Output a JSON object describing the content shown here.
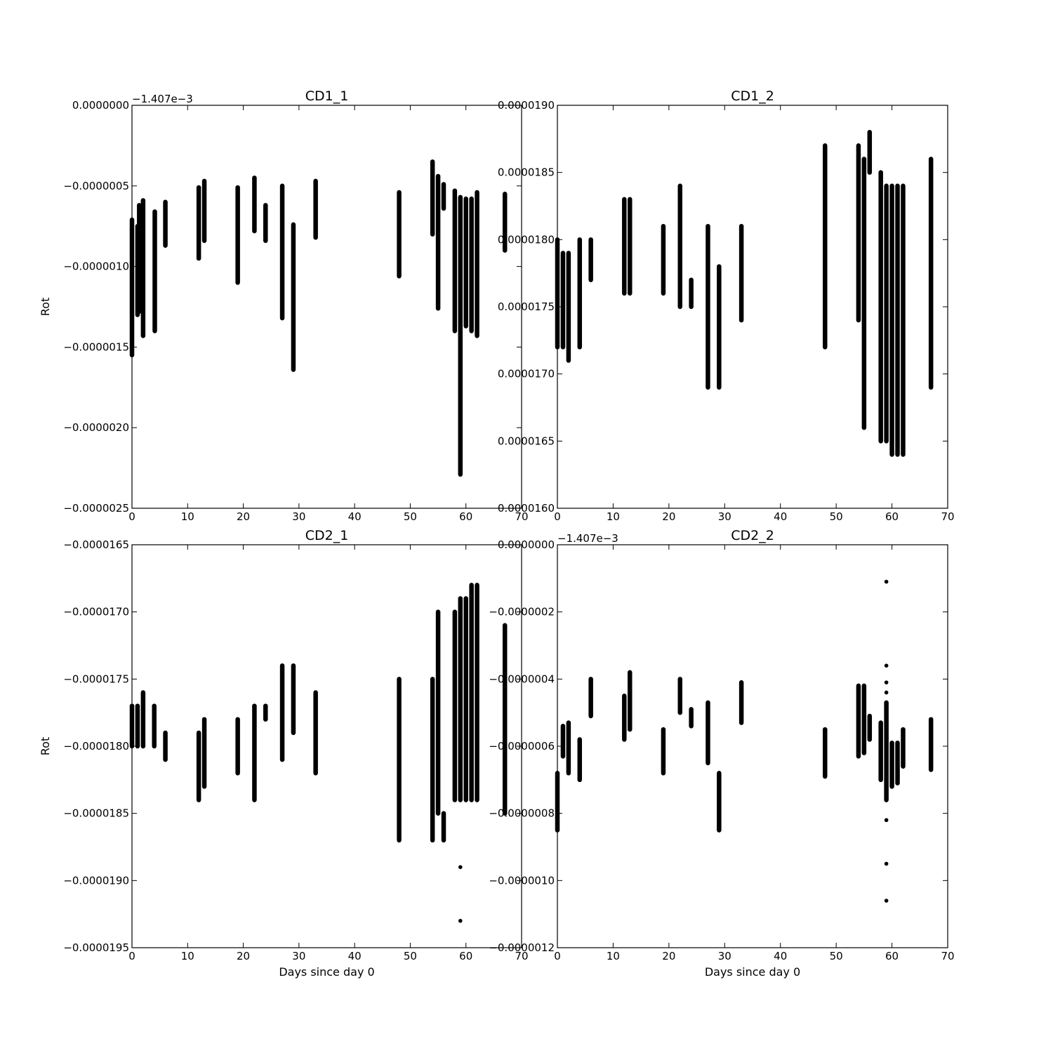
{
  "chart_data": [
    {
      "type": "scatter",
      "title": "CD1_1",
      "xlabel": "",
      "ylabel": "Rot",
      "offset_label": "−1.407e−3",
      "xlim": [
        0,
        70
      ],
      "ylim": [
        -2.5e-06,
        0.0
      ],
      "xticks": [
        "0",
        "10",
        "20",
        "30",
        "40",
        "50",
        "60",
        "70"
      ],
      "yticks": [
        "0.0000000",
        "−0.0000005",
        "−0.0000010",
        "−0.0000015",
        "−0.0000020",
        "−0.0000025"
      ],
      "marker_color": "#000000",
      "series": [
        {
          "points": [
            {
              "x": 0,
              "lo": -1.55e-06,
              "hi": -7.1e-07
            },
            {
              "x": 1,
              "lo": -1.3e-06,
              "hi": -7.5e-07
            },
            {
              "x": 1.3,
              "lo": -1.28e-06,
              "hi": -6.2e-07
            },
            {
              "x": 2,
              "lo": -1.43e-06,
              "hi": -5.9e-07
            },
            {
              "x": 4.1,
              "lo": -1.4e-06,
              "hi": -6.6e-07
            },
            {
              "x": 6,
              "lo": -8.7e-07,
              "hi": -6e-07
            },
            {
              "x": 12,
              "lo": -9.5e-07,
              "hi": -5.1e-07
            },
            {
              "x": 13,
              "lo": -8.4e-07,
              "hi": -4.7e-07
            },
            {
              "x": 19,
              "lo": -1.1e-06,
              "hi": -5.1e-07
            },
            {
              "x": 22,
              "lo": -7.8e-07,
              "hi": -4.5e-07
            },
            {
              "x": 24,
              "lo": -8.4e-07,
              "hi": -6.2e-07
            },
            {
              "x": 27,
              "lo": -1.32e-06,
              "hi": -5e-07
            },
            {
              "x": 29,
              "lo": -1.64e-06,
              "hi": -7.4e-07
            },
            {
              "x": 33,
              "lo": -8.2e-07,
              "hi": -4.7e-07
            },
            {
              "x": 48,
              "lo": -1.06e-06,
              "hi": -5.4e-07
            },
            {
              "x": 54,
              "lo": -8e-07,
              "hi": -3.5e-07
            },
            {
              "x": 55,
              "lo": -1.26e-06,
              "hi": -4.4e-07
            },
            {
              "x": 56,
              "lo": -6.4e-07,
              "hi": -4.9e-07
            },
            {
              "x": 58,
              "lo": -1.4e-06,
              "hi": -5.3e-07
            },
            {
              "x": 59,
              "lo": -2.29e-06,
              "hi": -5.7e-07
            },
            {
              "x": 60,
              "lo": -1.37e-06,
              "hi": -5.8e-07
            },
            {
              "x": 61,
              "lo": -1.4e-06,
              "hi": -5.8e-07
            },
            {
              "x": 62,
              "lo": -1.43e-06,
              "hi": -5.4e-07
            },
            {
              "x": 67,
              "lo": -9e-07,
              "hi": -5.5e-07
            }
          ],
          "outliers": [
            {
              "x": 59,
              "y": -1.7e-06
            },
            {
              "x": 59,
              "y": -1.79e-06
            },
            {
              "x": 59,
              "y": -2.1e-06
            },
            {
              "x": 59,
              "y": -2.14e-06
            }
          ]
        }
      ]
    },
    {
      "type": "scatter",
      "title": "CD1_2",
      "xlabel": "",
      "ylabel": "",
      "offset_label": "",
      "xlim": [
        0,
        70
      ],
      "ylim": [
        1.6e-05,
        1.9e-05
      ],
      "xticks": [
        "0",
        "10",
        "20",
        "30",
        "40",
        "50",
        "60",
        "70"
      ],
      "yticks": [
        "0.0000190",
        "0.0000185",
        "0.0000180",
        "0.0000175",
        "0.0000170",
        "0.0000165",
        "0.0000160"
      ],
      "marker_color": "#000000",
      "series": [
        {
          "points": [
            {
              "x": 0,
              "lo": 1.72e-05,
              "hi": 1.8e-05
            },
            {
              "x": 1,
              "lo": 1.72e-05,
              "hi": 1.79e-05
            },
            {
              "x": 2,
              "lo": 1.71e-05,
              "hi": 1.79e-05
            },
            {
              "x": 4,
              "lo": 1.72e-05,
              "hi": 1.8e-05
            },
            {
              "x": 6,
              "lo": 1.77e-05,
              "hi": 1.8e-05
            },
            {
              "x": 12,
              "lo": 1.76e-05,
              "hi": 1.83e-05
            },
            {
              "x": 13,
              "lo": 1.76e-05,
              "hi": 1.83e-05
            },
            {
              "x": 19,
              "lo": 1.76e-05,
              "hi": 1.81e-05
            },
            {
              "x": 22,
              "lo": 1.75e-05,
              "hi": 1.84e-05
            },
            {
              "x": 24,
              "lo": 1.75e-05,
              "hi": 1.77e-05
            },
            {
              "x": 27,
              "lo": 1.69e-05,
              "hi": 1.81e-05
            },
            {
              "x": 29,
              "lo": 1.69e-05,
              "hi": 1.78e-05
            },
            {
              "x": 33,
              "lo": 1.74e-05,
              "hi": 1.81e-05
            },
            {
              "x": 48,
              "lo": 1.72e-05,
              "hi": 1.87e-05
            },
            {
              "x": 54,
              "lo": 1.74e-05,
              "hi": 1.87e-05
            },
            {
              "x": 55,
              "lo": 1.66e-05,
              "hi": 1.86e-05
            },
            {
              "x": 56,
              "lo": 1.85e-05,
              "hi": 1.88e-05
            },
            {
              "x": 58,
              "lo": 1.65e-05,
              "hi": 1.85e-05
            },
            {
              "x": 59,
              "lo": 1.65e-05,
              "hi": 1.84e-05
            },
            {
              "x": 60,
              "lo": 1.64e-05,
              "hi": 1.84e-05
            },
            {
              "x": 61,
              "lo": 1.64e-05,
              "hi": 1.84e-05
            },
            {
              "x": 62,
              "lo": 1.64e-05,
              "hi": 1.84e-05
            },
            {
              "x": 67,
              "lo": 1.69e-05,
              "hi": 1.86e-05
            }
          ],
          "outliers": []
        }
      ]
    },
    {
      "type": "scatter",
      "title": "CD2_1",
      "xlabel": "Days since day 0",
      "ylabel": "Rot",
      "offset_label": "",
      "xlim": [
        0,
        70
      ],
      "ylim": [
        -1.95e-05,
        -1.65e-05
      ],
      "xticks": [
        "0",
        "10",
        "20",
        "30",
        "40",
        "50",
        "60",
        "70"
      ],
      "yticks": [
        "−0.0000165",
        "−0.0000170",
        "−0.0000175",
        "−0.0000180",
        "−0.0000185",
        "−0.0000190",
        "−0.0000195"
      ],
      "marker_color": "#000000",
      "series": [
        {
          "points": [
            {
              "x": 0,
              "lo": -1.8e-05,
              "hi": -1.77e-05
            },
            {
              "x": 1,
              "lo": -1.8e-05,
              "hi": -1.77e-05
            },
            {
              "x": 2,
              "lo": -1.8e-05,
              "hi": -1.76e-05
            },
            {
              "x": 4,
              "lo": -1.8e-05,
              "hi": -1.77e-05
            },
            {
              "x": 6,
              "lo": -1.81e-05,
              "hi": -1.79e-05
            },
            {
              "x": 12,
              "lo": -1.84e-05,
              "hi": -1.79e-05
            },
            {
              "x": 13,
              "lo": -1.83e-05,
              "hi": -1.78e-05
            },
            {
              "x": 19,
              "lo": -1.82e-05,
              "hi": -1.78e-05
            },
            {
              "x": 22,
              "lo": -1.84e-05,
              "hi": -1.77e-05
            },
            {
              "x": 24,
              "lo": -1.78e-05,
              "hi": -1.77e-05
            },
            {
              "x": 27,
              "lo": -1.81e-05,
              "hi": -1.74e-05
            },
            {
              "x": 29,
              "lo": -1.79e-05,
              "hi": -1.74e-05
            },
            {
              "x": 33,
              "lo": -1.82e-05,
              "hi": -1.76e-05
            },
            {
              "x": 48,
              "lo": -1.87e-05,
              "hi": -1.75e-05
            },
            {
              "x": 54,
              "lo": -1.87e-05,
              "hi": -1.75e-05
            },
            {
              "x": 55,
              "lo": -1.85e-05,
              "hi": -1.7e-05
            },
            {
              "x": 56,
              "lo": -1.87e-05,
              "hi": -1.85e-05
            },
            {
              "x": 58,
              "lo": -1.84e-05,
              "hi": -1.7e-05
            },
            {
              "x": 59,
              "lo": -1.84e-05,
              "hi": -1.69e-05
            },
            {
              "x": 60,
              "lo": -1.84e-05,
              "hi": -1.69e-05
            },
            {
              "x": 61,
              "lo": -1.84e-05,
              "hi": -1.68e-05
            },
            {
              "x": 62,
              "lo": -1.84e-05,
              "hi": -1.68e-05
            },
            {
              "x": 67,
              "lo": -1.85e-05,
              "hi": -1.71e-05
            }
          ],
          "outliers": [
            {
              "x": 59,
              "y": -1.89e-05
            },
            {
              "x": 59,
              "y": -1.93e-05
            }
          ]
        }
      ]
    },
    {
      "type": "scatter",
      "title": "CD2_2",
      "xlabel": "Days since day 0",
      "ylabel": "",
      "offset_label": "−1.407e−3",
      "xlim": [
        0,
        70
      ],
      "ylim": [
        -1.2e-06,
        0.0
      ],
      "xticks": [
        "0",
        "10",
        "20",
        "30",
        "40",
        "50",
        "60",
        "70"
      ],
      "yticks": [
        "0.0000000",
        "−0.0000002",
        "−0.0000004",
        "−0.0000006",
        "−0.0000008",
        "−0.0000010",
        "−0.0000012"
      ],
      "marker_color": "#000000",
      "series": [
        {
          "points": [
            {
              "x": 0,
              "lo": -8.5e-07,
              "hi": -6.8e-07
            },
            {
              "x": 1,
              "lo": -6.3e-07,
              "hi": -5.4e-07
            },
            {
              "x": 2,
              "lo": -6.8e-07,
              "hi": -5.3e-07
            },
            {
              "x": 4,
              "lo": -7e-07,
              "hi": -5.8e-07
            },
            {
              "x": 6,
              "lo": -5.1e-07,
              "hi": -4e-07
            },
            {
              "x": 12,
              "lo": -5.8e-07,
              "hi": -4.5e-07
            },
            {
              "x": 13,
              "lo": -5.5e-07,
              "hi": -3.8e-07
            },
            {
              "x": 19,
              "lo": -6.8e-07,
              "hi": -5.5e-07
            },
            {
              "x": 22,
              "lo": -5e-07,
              "hi": -4e-07
            },
            {
              "x": 24,
              "lo": -5.4e-07,
              "hi": -4.9e-07
            },
            {
              "x": 27,
              "lo": -6.5e-07,
              "hi": -4.7e-07
            },
            {
              "x": 29,
              "lo": -8.5e-07,
              "hi": -6.8e-07
            },
            {
              "x": 33,
              "lo": -5.3e-07,
              "hi": -4.1e-07
            },
            {
              "x": 48,
              "lo": -6.9e-07,
              "hi": -5.5e-07
            },
            {
              "x": 54,
              "lo": -6.3e-07,
              "hi": -4.2e-07
            },
            {
              "x": 55,
              "lo": -6.2e-07,
              "hi": -4.2e-07
            },
            {
              "x": 56,
              "lo": -5.8e-07,
              "hi": -5.1e-07
            },
            {
              "x": 58,
              "lo": -7e-07,
              "hi": -5.3e-07
            },
            {
              "x": 59,
              "lo": -7.6e-07,
              "hi": -4.7e-07
            },
            {
              "x": 60,
              "lo": -7.2e-07,
              "hi": -5.9e-07
            },
            {
              "x": 61,
              "lo": -7.1e-07,
              "hi": -5.9e-07
            },
            {
              "x": 62,
              "lo": -6.6e-07,
              "hi": -5.5e-07
            },
            {
              "x": 67,
              "lo": -6.7e-07,
              "hi": -5.2e-07
            }
          ],
          "outliers": [
            {
              "x": 59,
              "y": -1.1e-07
            },
            {
              "x": 59,
              "y": -3.6e-07
            },
            {
              "x": 59,
              "y": -4.1e-07
            },
            {
              "x": 59,
              "y": -4.4e-07
            },
            {
              "x": 59,
              "y": -8.2e-07
            },
            {
              "x": 59,
              "y": -9.5e-07
            },
            {
              "x": 59,
              "y": -1.06e-06
            }
          ]
        }
      ]
    }
  ]
}
